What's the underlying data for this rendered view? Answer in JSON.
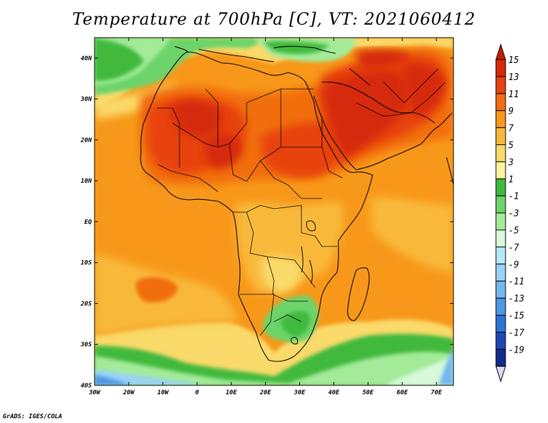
{
  "title": "Temperature at 700hPa [C], VT: 2021060412",
  "credit": "GrADS: IGES/COLA",
  "map": {
    "variable": "Temperature at 700hPa",
    "unit": "C",
    "lon_range": [
      -30,
      75
    ],
    "lat_range": [
      -40,
      45
    ],
    "x_tick_labels": [
      "30W",
      "20W",
      "10W",
      "0",
      "10E",
      "20E",
      "30E",
      "40E",
      "50E",
      "60E",
      "70E"
    ],
    "y_tick_labels": [
      "40N",
      "30N",
      "20N",
      "10N",
      "EQ",
      "10S",
      "20S",
      "30S",
      "40S"
    ]
  },
  "colorbar": {
    "labels": [
      "15",
      "13",
      "11",
      "9",
      "7",
      "5",
      "3",
      "1",
      "-1",
      "-3",
      "-5",
      "-7",
      "-9",
      "-11",
      "-13",
      "-15",
      "-17",
      "-19"
    ],
    "colors": [
      "#d52a0a",
      "#e8420e",
      "#f16e10",
      "#f8981a",
      "#f8b93a",
      "#f9da6a",
      "#fbf3a0",
      "#3fb93c",
      "#6cd46a",
      "#a3eb99",
      "#d7f9dc",
      "#b6e9f7",
      "#9ad2f5",
      "#73b7ee",
      "#4d97e4",
      "#2e73d7",
      "#1d49b8",
      "#122e8a"
    ],
    "end_colors": {
      "top": "#c41d05",
      "bottom": "#dcd8f0"
    }
  }
}
